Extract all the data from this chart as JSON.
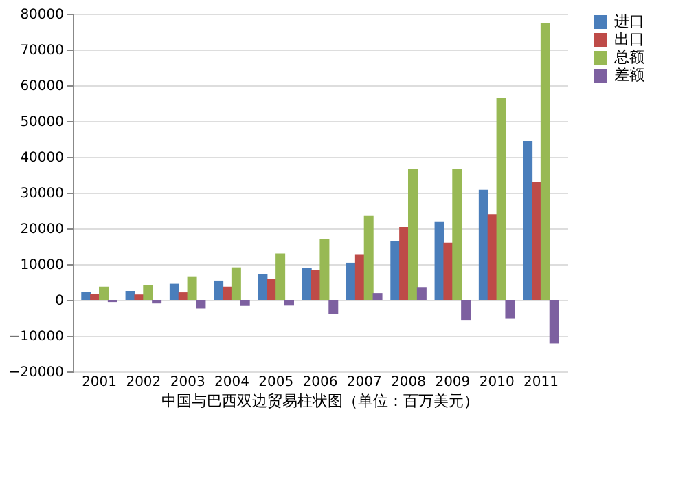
{
  "chart_data": {
    "type": "bar",
    "categories": [
      "2001",
      "2002",
      "2003",
      "2004",
      "2005",
      "2006",
      "2007",
      "2008",
      "2009",
      "2010",
      "2011"
    ],
    "series": [
      {
        "name": "进口",
        "color": "#4a7ebb",
        "values": [
          2300,
          2500,
          4500,
          5400,
          7200,
          8900,
          10400,
          16500,
          21800,
          30800,
          44400
        ]
      },
      {
        "name": "出口",
        "color": "#be4b48",
        "values": [
          1700,
          1500,
          2100,
          3700,
          5800,
          8300,
          12800,
          20400,
          16000,
          24000,
          32900
        ]
      },
      {
        "name": "总额",
        "color": "#98b954",
        "values": [
          3700,
          4100,
          6600,
          9100,
          13000,
          17000,
          23500,
          36700,
          36700,
          56500,
          77400
        ]
      },
      {
        "name": "差额",
        "color": "#7d60a0",
        "values": [
          -600,
          -1000,
          -2400,
          -1700,
          -1600,
          -3900,
          1900,
          3600,
          -5600,
          -5300,
          -12200
        ]
      }
    ],
    "ylim": [
      -20000,
      80000
    ],
    "yticks": [
      -20000,
      -10000,
      0,
      10000,
      20000,
      30000,
      40000,
      50000,
      60000,
      70000,
      80000
    ],
    "grid": "y",
    "legend": "right",
    "annotations": [
      "中国与巴西双边贸易柱状图（单位：百万美元）"
    ]
  }
}
